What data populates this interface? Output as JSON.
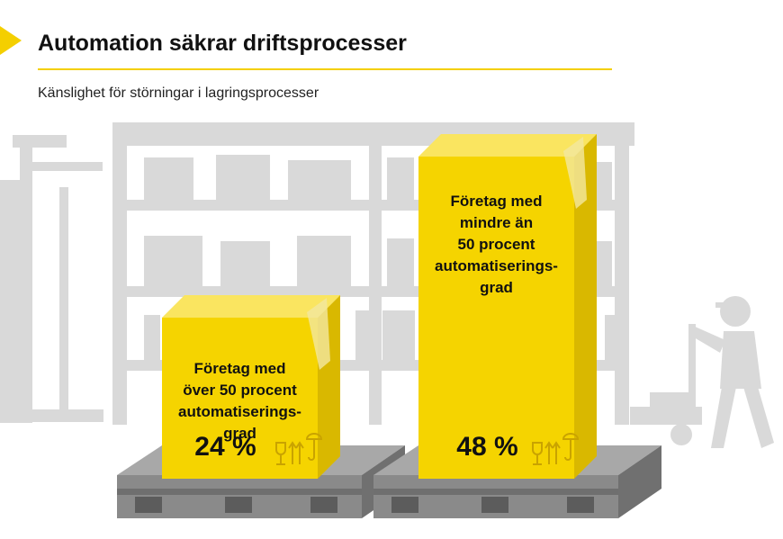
{
  "header": {
    "title": "Automation säkrar driftsprocesser",
    "subtitle": "Känslighet för störningar i lagringsprocesser"
  },
  "colors": {
    "accent": "#f4cf00",
    "box_front": "#f5d400",
    "box_top": "#fae560",
    "box_side": "#d9b800",
    "background_art": "#d9d9d9",
    "pallet": "#8a8a8a"
  },
  "chart_data": {
    "type": "bar",
    "title": "Automation säkrar driftsprocesser",
    "subtitle": "Känslighet för störningar i lagringsprocesser",
    "categories": [
      "Företag med över 50 procent automatiseringsgrad",
      "Företag med mindre än 50 procent automatiseringsgrad"
    ],
    "values": [
      24,
      48
    ],
    "unit": "%",
    "value_labels": [
      "24 %",
      "48 %"
    ],
    "label_lines": [
      [
        "Företag med",
        "över 50 procent",
        "automatiserings-",
        "grad"
      ],
      [
        "Företag med",
        "mindre än",
        "50 procent",
        "automatiserings-",
        "grad"
      ]
    ],
    "ylim": [
      0,
      48
    ],
    "grid": false,
    "legend": "none"
  }
}
